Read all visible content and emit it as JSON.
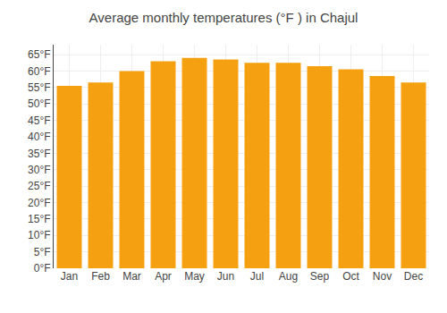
{
  "chart_data": {
    "type": "bar",
    "title": "Average monthly temperatures (°F ) in Chajul",
    "categories": [
      "Jan",
      "Feb",
      "Mar",
      "Apr",
      "May",
      "Jun",
      "Jul",
      "Aug",
      "Sep",
      "Oct",
      "Nov",
      "Dec"
    ],
    "values": [
      55.5,
      56.5,
      60.0,
      63.0,
      64.0,
      63.5,
      62.5,
      62.5,
      61.5,
      60.5,
      58.5,
      56.5
    ],
    "color": "#F5A010",
    "ylim": [
      0,
      68
    ],
    "yticks": [
      {
        "value": 0,
        "label": "0°F"
      },
      {
        "value": 5,
        "label": "5°F"
      },
      {
        "value": 10,
        "label": "10°F"
      },
      {
        "value": 15,
        "label": "15°F"
      },
      {
        "value": 20,
        "label": "20°F"
      },
      {
        "value": 25,
        "label": "25°F"
      },
      {
        "value": 30,
        "label": "30°F"
      },
      {
        "value": 35,
        "label": "35°F"
      },
      {
        "value": 40,
        "label": "40°F"
      },
      {
        "value": 45,
        "label": "45°F"
      },
      {
        "value": 50,
        "label": "50°F"
      },
      {
        "value": 55,
        "label": "55°F"
      },
      {
        "value": 60,
        "label": "60°F"
      },
      {
        "value": 65,
        "label": "65°F"
      }
    ],
    "grid": true
  }
}
